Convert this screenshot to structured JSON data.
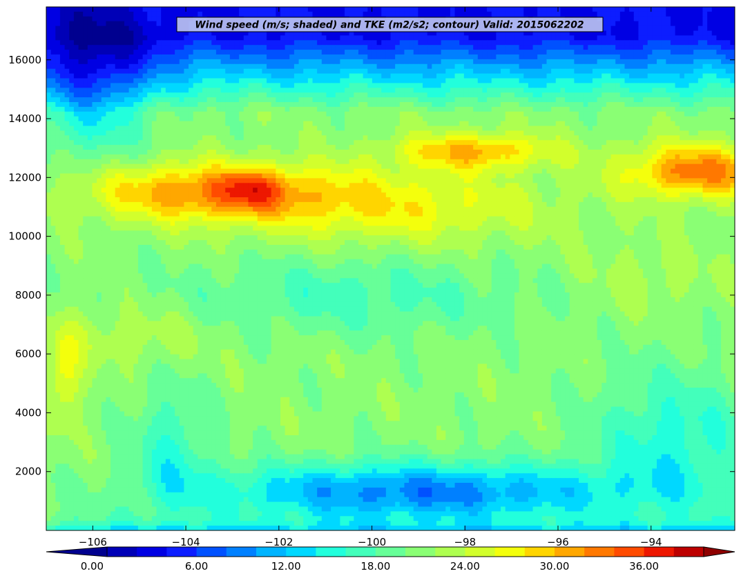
{
  "chart_data": {
    "type": "heatmap",
    "title": "Wind speed (m/s; shaded) and TKE (m2/s2; contour) Valid: 2015062202",
    "xlabel": "",
    "ylabel": "",
    "xlim": [
      -107.0,
      -92.2
    ],
    "ylim": [
      0,
      17800
    ],
    "x_ticks": [
      -106,
      -104,
      -102,
      -100,
      -98,
      -96,
      -94
    ],
    "x_tick_labels": [
      "−106",
      "−104",
      "−102",
      "−100",
      "−98",
      "−96",
      "−94"
    ],
    "y_ticks": [
      2000,
      4000,
      6000,
      8000,
      10000,
      12000,
      14000,
      16000
    ],
    "y_tick_labels": [
      "2000",
      "4000",
      "6000",
      "8000",
      "10000",
      "12000",
      "14000",
      "16000"
    ],
    "colorbar": {
      "levels": [
        0,
        2,
        4,
        6,
        8,
        10,
        12,
        14,
        16,
        18,
        20,
        22,
        24,
        26,
        28,
        30,
        32,
        34,
        36,
        38,
        40
      ],
      "tick_values": [
        0,
        6,
        12,
        18,
        24,
        30,
        36
      ],
      "tick_labels": [
        "0.00",
        "6.00",
        "12.00",
        "18.00",
        "24.00",
        "30.00",
        "36.00"
      ],
      "extend": "both",
      "colors": [
        "#00008f",
        "#0000b7",
        "#0000e3",
        "#0c1dff",
        "#0051ff",
        "#0080ff",
        "#00b4ff",
        "#00d8ff",
        "#22ffdc",
        "#43ffbb",
        "#67ff98",
        "#8aff74",
        "#aeff50",
        "#d2ff2c",
        "#f4ff0c",
        "#ffd500",
        "#ffa700",
        "#ff7800",
        "#ff4b00",
        "#ed1700",
        "#bd0000",
        "#8f0000"
      ]
    },
    "field_description_points": [
      {
        "x": -106.6,
        "y": 5500,
        "v": 28
      },
      {
        "x": -104.9,
        "y": 11500,
        "v": 32
      },
      {
        "x": -102.6,
        "y": 11600,
        "v": 35
      },
      {
        "x": -98.0,
        "y": 12800,
        "v": 30
      },
      {
        "x": -93.0,
        "y": 12100,
        "v": 35
      },
      {
        "x": -100.5,
        "y": 8000,
        "v": 18
      },
      {
        "x": -104.5,
        "y": 2700,
        "v": 15
      },
      {
        "x": -99.0,
        "y": 1200,
        "v": 8
      },
      {
        "x": -96.0,
        "y": 17300,
        "v": 2
      },
      {
        "x": -106.5,
        "y": 15000,
        "v": 4
      },
      {
        "x": -94.0,
        "y": 8500,
        "v": 23
      },
      {
        "x": -100.0,
        "y": 5000,
        "v": 22
      }
    ]
  }
}
